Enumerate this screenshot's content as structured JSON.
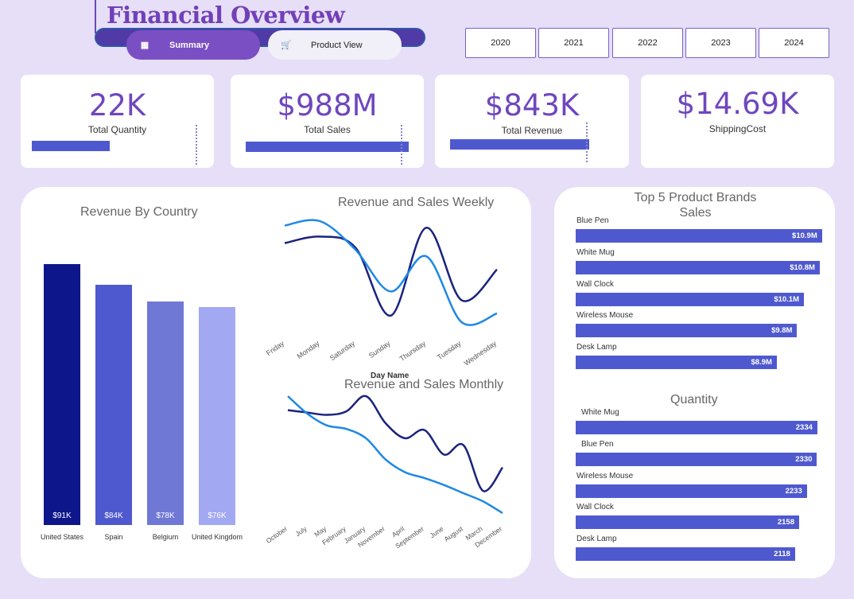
{
  "header": {
    "title": "Financial Overview",
    "tabs": [
      {
        "label": "Summary",
        "icon": "grid-icon",
        "active": true
      },
      {
        "label": "Product View",
        "icon": "cart-icon",
        "active": false
      }
    ],
    "years": [
      "2020",
      "2021",
      "2022",
      "2023",
      "2024"
    ]
  },
  "kpis": [
    {
      "value": "22K",
      "label": "Total Quantity",
      "bar_fill": 0.48
    },
    {
      "value": "$988M",
      "label": "Total Sales",
      "bar_fill": 1.0
    },
    {
      "value": "$843K",
      "label": "Total Revenue",
      "bar_fill": 1.0
    },
    {
      "value": "$14.69K",
      "label": "ShippingCost"
    }
  ],
  "colors": {
    "accent": "#6f46be",
    "bar": "#4f59cf",
    "line_dark": "#1a237e",
    "line_light": "#1e88e5",
    "country_bars": [
      "#0d168a",
      "#4f59cf",
      "#7078d6",
      "#a3a8f3"
    ]
  },
  "chart_data": [
    {
      "type": "bar",
      "title": "Revenue By Country",
      "categories": [
        "United States",
        "Spain",
        "Belgium",
        "United Kingdom"
      ],
      "values": [
        91,
        84,
        78,
        76
      ],
      "data_labels": [
        "$91K",
        "$84K",
        "$78K",
        "$76K"
      ],
      "unit": "K",
      "ylim": [
        0,
        100
      ]
    },
    {
      "type": "line",
      "title": "Revenue and Sales Weekly",
      "xlabel": "Day Name",
      "categories": [
        "Friday",
        "Monday",
        "Saturday",
        "Sunday",
        "Thursday",
        "Tuesday",
        "Wednesday"
      ],
      "series": [
        {
          "values": [
            0.72,
            0.78,
            0.68,
            0.06,
            0.86,
            0.2,
            0.48
          ]
        },
        {
          "values": [
            0.88,
            0.92,
            0.66,
            0.28,
            0.6,
            0.0,
            0.08
          ]
        }
      ],
      "ylim": [
        0,
        1
      ]
    },
    {
      "type": "line",
      "title": "Revenue and Sales Monthly",
      "categories": [
        "October",
        "July",
        "May",
        "February",
        "January",
        "November",
        "April",
        "September",
        "June",
        "August",
        "March",
        "December"
      ],
      "series": [
        {
          "values": [
            0.88,
            0.86,
            0.84,
            0.87,
            1.0,
            0.77,
            0.64,
            0.71,
            0.5,
            0.58,
            0.19,
            0.39
          ]
        },
        {
          "values": [
            1.0,
            0.85,
            0.75,
            0.72,
            0.64,
            0.46,
            0.35,
            0.3,
            0.24,
            0.17,
            0.1,
            0.0
          ]
        }
      ],
      "ylim": [
        0,
        1
      ]
    },
    {
      "type": "bar",
      "orientation": "horizontal",
      "title": "Top 5 Product  Brands Sales",
      "categories": [
        "Blue Pen",
        "White Mug",
        "Wall Clock",
        "Wireless Mouse",
        "Desk Lamp"
      ],
      "values": [
        10.9,
        10.8,
        10.1,
        9.8,
        8.9
      ],
      "data_labels": [
        "$10.9M",
        "$10.8M",
        "$10.1M",
        "$9.8M",
        "$8.9M"
      ],
      "unit": "M",
      "xlim": [
        0,
        12
      ]
    },
    {
      "type": "bar",
      "orientation": "horizontal",
      "title": "Quantity",
      "categories": [
        "White Mug",
        "Blue Pen",
        "Wireless Mouse",
        "Wall Clock",
        "Desk Lamp"
      ],
      "values": [
        2334,
        2330,
        2233,
        2158,
        2118
      ],
      "data_labels": [
        "2334",
        "2330",
        "2233",
        "2158",
        "2118"
      ],
      "xlim": [
        0,
        2350
      ]
    }
  ]
}
